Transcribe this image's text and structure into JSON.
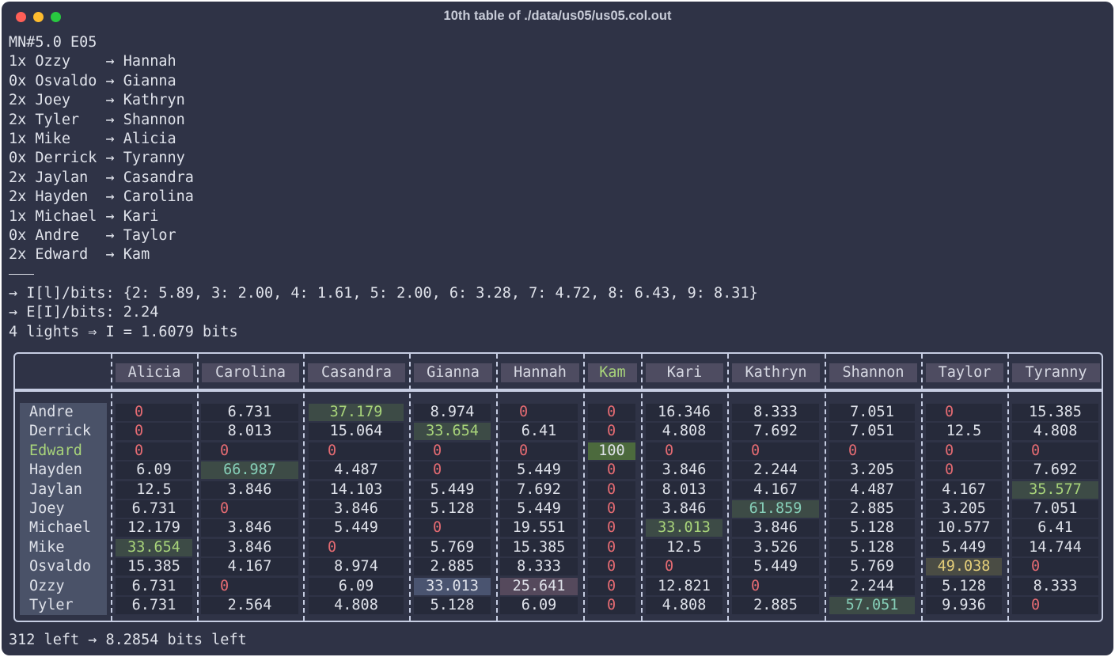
{
  "window": {
    "title": "10th table of ./data/us05/us05.col.out"
  },
  "header_line": "MN#5.0 E05",
  "pairs": [
    {
      "count": "1x",
      "from": "Ozzy",
      "to": "Hannah"
    },
    {
      "count": "0x",
      "from": "Osvaldo",
      "to": "Gianna"
    },
    {
      "count": "2x",
      "from": "Joey",
      "to": "Kathryn"
    },
    {
      "count": "2x",
      "from": "Tyler",
      "to": "Shannon"
    },
    {
      "count": "1x",
      "from": "Mike",
      "to": "Alicia"
    },
    {
      "count": "0x",
      "from": "Derrick",
      "to": "Tyranny"
    },
    {
      "count": "2x",
      "from": "Jaylan",
      "to": "Casandra"
    },
    {
      "count": "2x",
      "from": "Hayden",
      "to": "Carolina"
    },
    {
      "count": "1x",
      "from": "Michael",
      "to": "Kari"
    },
    {
      "count": "0x",
      "from": "Andre",
      "to": "Taylor"
    },
    {
      "count": "2x",
      "from": "Edward",
      "to": "Kam"
    }
  ],
  "arrow": "→",
  "info_bits": "→ I[l]/bits: {2: 5.89, 3: 2.00, 4: 1.61, 5: 2.00, 6: 3.28, 7: 4.72, 8: 6.43, 9: 8.31}",
  "info_expected": "→ E[I]/bits: 2.24",
  "info_lights": "4 lights ⇒ I = 1.6079 bits",
  "table": {
    "columns": [
      "Alicia",
      "Carolina",
      "Casandra",
      "Gianna",
      "Hannah",
      "Kam",
      "Kari",
      "Kathryn",
      "Shannon",
      "Taylor",
      "Tyranny"
    ],
    "highlight_column": "Kam",
    "rows": [
      {
        "name": "Andre",
        "values": [
          "0",
          "6.731",
          "37.179",
          "8.974",
          "0",
          "0",
          "16.346",
          "8.333",
          "7.051",
          "0",
          "15.385"
        ]
      },
      {
        "name": "Derrick",
        "values": [
          "0",
          "8.013",
          "15.064",
          "33.654",
          "6.41",
          "0",
          "4.808",
          "7.692",
          "7.051",
          "12.5",
          "4.808"
        ]
      },
      {
        "name": "Edward",
        "values": [
          "0",
          "0",
          "0",
          "0",
          "0",
          "100",
          "0",
          "0",
          "0",
          "0",
          "0"
        ]
      },
      {
        "name": "Hayden",
        "values": [
          "6.09",
          "66.987",
          "4.487",
          "0",
          "5.449",
          "0",
          "3.846",
          "2.244",
          "3.205",
          "0",
          "7.692"
        ]
      },
      {
        "name": "Jaylan",
        "values": [
          "12.5",
          "3.846",
          "14.103",
          "5.449",
          "7.692",
          "0",
          "8.013",
          "4.167",
          "4.487",
          "4.167",
          "35.577"
        ]
      },
      {
        "name": "Joey",
        "values": [
          "6.731",
          "0",
          "3.846",
          "5.128",
          "5.449",
          "0",
          "3.846",
          "61.859",
          "2.885",
          "3.205",
          "7.051"
        ]
      },
      {
        "name": "Michael",
        "values": [
          "12.179",
          "3.846",
          "5.449",
          "0",
          "19.551",
          "0",
          "33.013",
          "3.846",
          "5.128",
          "10.577",
          "6.41"
        ]
      },
      {
        "name": "Mike",
        "values": [
          "33.654",
          "3.846",
          "0",
          "5.769",
          "15.385",
          "0",
          "12.5",
          "3.526",
          "5.128",
          "5.449",
          "14.744"
        ]
      },
      {
        "name": "Osvaldo",
        "values": [
          "15.385",
          "4.167",
          "8.974",
          "2.885",
          "8.333",
          "0",
          "0",
          "5.449",
          "5.769",
          "49.038",
          "0"
        ]
      },
      {
        "name": "Ozzy",
        "values": [
          "6.731",
          "0",
          "6.09",
          "33.013",
          "25.641",
          "0",
          "12.821",
          "0",
          "2.244",
          "5.128",
          "8.333"
        ]
      },
      {
        "name": "Tyler",
        "values": [
          "6.731",
          "2.564",
          "4.808",
          "5.128",
          "6.09",
          "0",
          "4.808",
          "2.885",
          "57.051",
          "9.936",
          "0"
        ]
      }
    ],
    "highlights": [
      {
        "row": "Andre",
        "col": "Casandra",
        "style": "g"
      },
      {
        "row": "Derrick",
        "col": "Gianna",
        "style": "g"
      },
      {
        "row": "Edward",
        "col": "Kam",
        "style": "kg"
      },
      {
        "row": "Hayden",
        "col": "Carolina",
        "style": "t"
      },
      {
        "row": "Jaylan",
        "col": "Tyranny",
        "style": "g"
      },
      {
        "row": "Joey",
        "col": "Kathryn",
        "style": "t"
      },
      {
        "row": "Michael",
        "col": "Kari",
        "style": "g"
      },
      {
        "row": "Mike",
        "col": "Alicia",
        "style": "g"
      },
      {
        "row": "Osvaldo",
        "col": "Taylor",
        "style": "y"
      },
      {
        "row": "Ozzy",
        "col": "Gianna",
        "style": "b"
      },
      {
        "row": "Ozzy",
        "col": "Hannah",
        "style": "p"
      },
      {
        "row": "Tyler",
        "col": "Shannon",
        "style": "t"
      }
    ],
    "highlight_row": "Edward"
  },
  "footer": "312 left → 8.2854 bits left",
  "colors": {
    "background": "#2f3346",
    "text": "#dfe2ea",
    "zero": "#e46b72",
    "green": "#a8d47a",
    "border": "#c6cde2"
  }
}
